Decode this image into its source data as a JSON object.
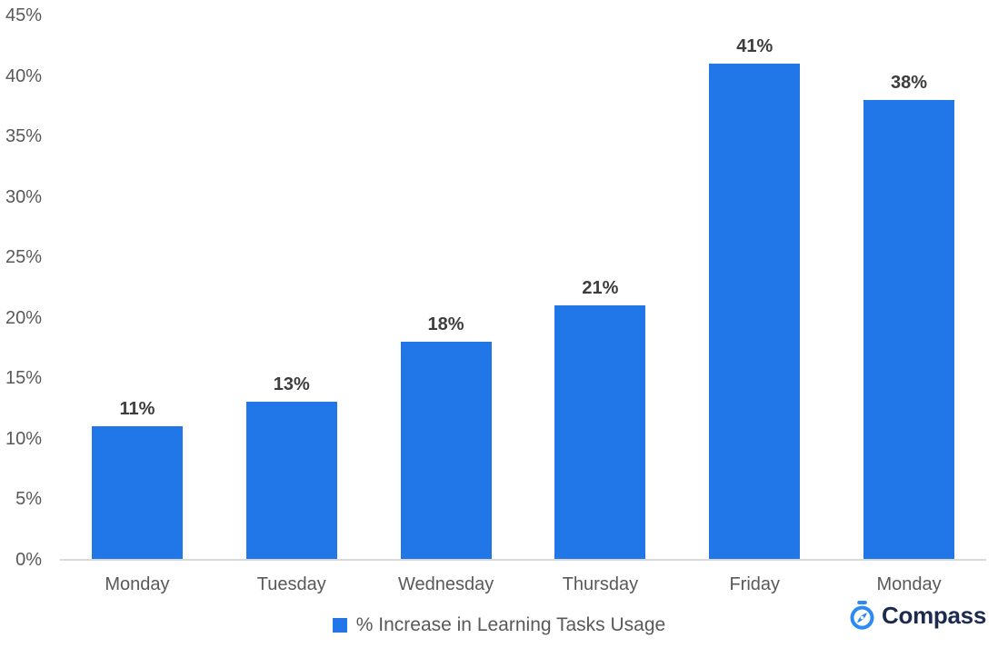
{
  "chart_data": {
    "type": "bar",
    "title": "",
    "categories": [
      "Monday",
      "Tuesday",
      "Wednesday",
      "Thursday",
      "Friday",
      "Monday"
    ],
    "values": [
      11,
      13,
      18,
      21,
      41,
      38
    ],
    "value_labels": [
      "11%",
      "13%",
      "18%",
      "21%",
      "41%",
      "38%"
    ],
    "y_ticks": [
      "45%",
      "40%",
      "35%",
      "30%",
      "25%",
      "20%",
      "15%",
      "10%",
      "5%",
      "0%"
    ],
    "ylim": [
      0,
      45
    ],
    "y_tick_step": 5,
    "grid": false,
    "legend_label": "% Increase in Learning Tasks Usage",
    "legend_position": "bottom-center",
    "xlabel": "",
    "ylabel": ""
  },
  "branding": {
    "logo_text": "Compass",
    "logo_icon": "stopwatch-compass-icon"
  },
  "colors": {
    "bar": "#2277E8",
    "tick_label": "#595959",
    "data_label": "#3D3D3D",
    "axis_line": "#D9D9D9",
    "logo_navy": "#1C2B4F",
    "logo_blue": "#2C8AF3",
    "background": "#FFFFFF"
  }
}
